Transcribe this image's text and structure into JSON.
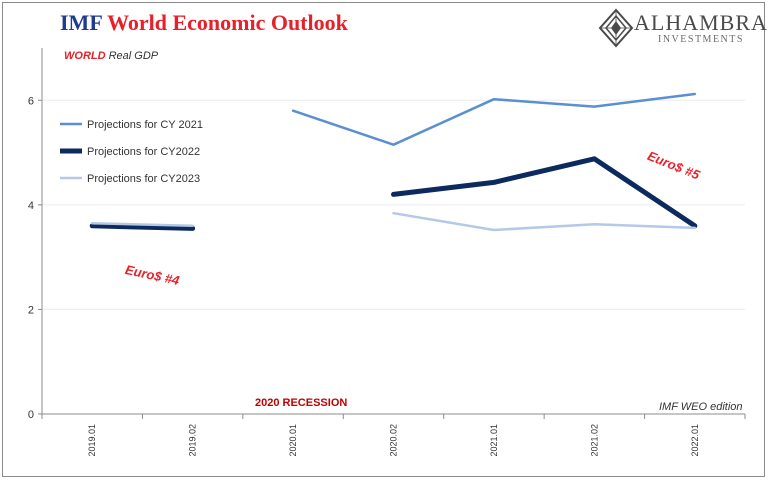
{
  "header": {
    "title_part1": "IMF",
    "title_part2": "World Economic Outlook",
    "subtitle_part1": "WORLD",
    "subtitle_part2": "Real GDP"
  },
  "logo": {
    "name": "ALHAMBRA",
    "sub": "INVESTMENTS"
  },
  "chart_data": {
    "type": "line",
    "categories": [
      "2019.01",
      "2019.02",
      "2020.01",
      "2020.02",
      "2021.01",
      "2021.02",
      "2022.01"
    ],
    "ylim": [
      0,
      7
    ],
    "yticks": [
      0,
      2,
      4,
      6
    ],
    "grid": true,
    "legend_position": "left",
    "series": [
      {
        "name": "Projections for CY 2021",
        "color": "#5b8fd4",
        "width": 2.5,
        "values": [
          null,
          null,
          5.8,
          5.15,
          6.02,
          5.88,
          6.12
        ]
      },
      {
        "name": "Projections for CY2022",
        "color": "#0d2a5e",
        "width": 5,
        "values": [
          3.6,
          3.55,
          null,
          4.2,
          4.43,
          4.88,
          3.6
        ]
      },
      {
        "name": "Projections for CY2023",
        "color": "#b4c9e6",
        "width": 2.5,
        "values": [
          3.65,
          3.6,
          null,
          3.84,
          3.52,
          3.63,
          3.56
        ]
      }
    ],
    "annotations": {
      "euro4": "Euro$ #4",
      "euro5": "Euro$ #5",
      "recession": "2020 RECESSION",
      "edition": "IMF WEO edition"
    }
  }
}
